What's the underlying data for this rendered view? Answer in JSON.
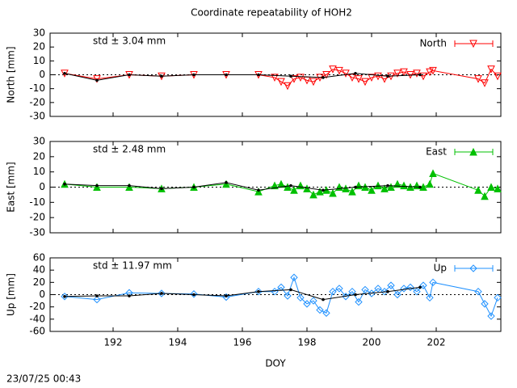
{
  "timestamp": "23/07/25 00:43",
  "chart_data": [
    {
      "type": "line",
      "title": "Coordinate repeatability of HOH2",
      "ylabel": "North [mm]",
      "annotation": "std ± 3.04 mm",
      "annotation_color": "#ff0000",
      "xlim": [
        190.05,
        204.0
      ],
      "xticks": [
        192,
        194,
        196,
        198,
        200,
        202
      ],
      "ylim": [
        -30,
        30
      ],
      "yticks": [
        -30,
        -20,
        -10,
        0,
        10,
        20,
        30
      ],
      "legend": "upper right",
      "series": [
        {
          "name": "North",
          "color": "#ff0000",
          "marker": "triangle-down-open",
          "x": [
            190.5,
            191.5,
            192.5,
            193.5,
            194.5,
            195.5,
            196.5,
            197.0,
            197.2,
            197.4,
            197.6,
            197.8,
            198.0,
            198.2,
            198.4,
            198.6,
            198.8,
            199.0,
            199.2,
            199.4,
            199.6,
            199.8,
            200.0,
            200.2,
            200.4,
            200.6,
            200.8,
            201.0,
            201.2,
            201.4,
            201.6,
            201.8,
            201.9,
            203.3,
            203.5,
            203.7,
            203.9
          ],
          "values": [
            1,
            -3,
            0,
            -1,
            0,
            0,
            0,
            -2,
            -5,
            -8,
            -3,
            -2,
            -4,
            -5,
            -2,
            0,
            4,
            3,
            1,
            -2,
            -3,
            -5,
            -2,
            -1,
            -3,
            -1,
            1,
            2,
            0,
            1,
            -1,
            2,
            3,
            -3,
            -6,
            4,
            -1
          ]
        },
        {
          "color": "#000000",
          "marker": "dot",
          "x": [
            190.5,
            191.5,
            192.5,
            193.5,
            194.5,
            195.5,
            196.5,
            197.5,
            198.5,
            199.5,
            200.5,
            201.5
          ],
          "values": [
            1,
            -4,
            0,
            -1,
            0,
            0,
            0,
            -1,
            -2,
            1,
            -1,
            0
          ]
        }
      ]
    },
    {
      "type": "line",
      "ylabel": "East [mm]",
      "annotation": "std ± 2.48 mm",
      "annotation_color": "#00c000",
      "xlim": [
        190.05,
        204.0
      ],
      "xticks": [
        192,
        194,
        196,
        198,
        200,
        202
      ],
      "ylim": [
        -30,
        30
      ],
      "yticks": [
        -30,
        -20,
        -10,
        0,
        10,
        20,
        30
      ],
      "legend": "upper right",
      "series": [
        {
          "name": "East",
          "color": "#00c000",
          "marker": "triangle-filled",
          "x": [
            190.5,
            191.5,
            192.5,
            193.5,
            194.5,
            195.5,
            196.5,
            197.0,
            197.2,
            197.4,
            197.6,
            197.8,
            198.0,
            198.2,
            198.4,
            198.6,
            198.8,
            199.0,
            199.2,
            199.4,
            199.6,
            199.8,
            200.0,
            200.2,
            200.4,
            200.6,
            200.8,
            201.0,
            201.2,
            201.4,
            201.6,
            201.8,
            201.9,
            203.3,
            203.5,
            203.7,
            203.9
          ],
          "values": [
            2,
            0,
            0,
            -1,
            0,
            2,
            -3,
            1,
            2,
            0,
            -2,
            1,
            -1,
            -5,
            -3,
            -2,
            -4,
            0,
            -1,
            -3,
            1,
            0,
            -2,
            1,
            -1,
            0,
            2,
            1,
            0,
            1,
            0,
            2,
            9,
            -2,
            -6,
            0,
            -1
          ]
        },
        {
          "color": "#000000",
          "marker": "dot",
          "x": [
            190.5,
            191.5,
            192.5,
            193.5,
            194.5,
            195.5,
            196.5,
            197.5,
            198.5,
            199.5,
            200.5,
            201.5
          ],
          "values": [
            2,
            1,
            1,
            -1,
            0,
            3,
            -2,
            1,
            -2,
            0,
            1,
            0
          ]
        }
      ]
    },
    {
      "type": "line",
      "ylabel": "Up [mm]",
      "xlabel": "DOY",
      "annotation": "std ± 11.97 mm",
      "annotation_color": "#1e90ff",
      "xlim": [
        190.05,
        204.0
      ],
      "xticks": [
        192,
        194,
        196,
        198,
        200,
        202
      ],
      "ylim": [
        -60,
        60
      ],
      "yticks": [
        -60,
        -40,
        -20,
        0,
        20,
        40,
        60
      ],
      "legend": "upper right",
      "series": [
        {
          "name": "Up",
          "color": "#1e90ff",
          "marker": "diamond-open",
          "x": [
            190.5,
            191.5,
            192.5,
            193.5,
            194.5,
            195.5,
            196.5,
            197.0,
            197.2,
            197.4,
            197.6,
            197.8,
            198.0,
            198.2,
            198.4,
            198.6,
            198.8,
            199.0,
            199.2,
            199.4,
            199.6,
            199.8,
            200.0,
            200.2,
            200.4,
            200.6,
            200.8,
            201.0,
            201.2,
            201.4,
            201.6,
            201.8,
            201.9,
            203.3,
            203.5,
            203.7,
            203.9
          ],
          "values": [
            -3,
            -8,
            3,
            2,
            1,
            -4,
            5,
            5,
            12,
            -2,
            28,
            -5,
            -15,
            -10,
            -25,
            -30,
            5,
            10,
            -3,
            5,
            -12,
            8,
            2,
            10,
            5,
            15,
            0,
            10,
            12,
            5,
            15,
            -5,
            20,
            5,
            -15,
            -35,
            -5
          ]
        },
        {
          "color": "#000000",
          "marker": "dot",
          "x": [
            190.5,
            191.5,
            192.5,
            193.5,
            194.5,
            195.5,
            196.5,
            197.5,
            198.5,
            199.5,
            200.5,
            201.5
          ],
          "values": [
            -3,
            -2,
            -2,
            2,
            0,
            -2,
            5,
            8,
            -8,
            0,
            5,
            12
          ]
        }
      ]
    }
  ]
}
